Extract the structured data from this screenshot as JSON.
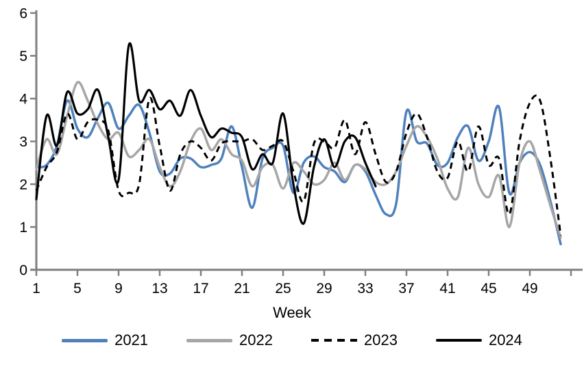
{
  "chart_data": {
    "type": "line",
    "title": "",
    "xlabel": "Week",
    "ylabel": "",
    "grid": false,
    "smoothed": true,
    "legend_position": "bottom",
    "axis_color": "#7f7f7f",
    "text_color": "#000000",
    "xlim": [
      1,
      53
    ],
    "ylim": [
      0,
      6
    ],
    "y_ticks": [
      0,
      1,
      2,
      3,
      4,
      5,
      6
    ],
    "x_ticks": [
      1,
      5,
      9,
      13,
      17,
      21,
      25,
      29,
      33,
      37,
      41,
      45,
      49,
      53
    ],
    "x_tick_labels": [
      "1",
      "5",
      "9",
      "13",
      "17",
      "21",
      "25",
      "29",
      "33",
      "37",
      "41",
      "45",
      "49",
      ""
    ],
    "weeks_start": 1,
    "series": [
      {
        "name": "2021",
        "color": "#4f81bd",
        "style": "solid",
        "values": [
          2.4,
          2.45,
          2.9,
          3.95,
          3.3,
          3.1,
          3.55,
          3.9,
          3.3,
          3.6,
          3.85,
          3.2,
          2.3,
          2.25,
          2.6,
          2.6,
          2.4,
          2.45,
          2.6,
          3.35,
          2.4,
          1.45,
          2.6,
          2.85,
          2.9,
          1.8,
          2.5,
          2.65,
          2.4,
          2.3,
          2.05,
          2.45,
          2.3,
          1.75,
          1.3,
          1.55,
          3.7,
          3.0,
          2.95,
          2.45,
          2.5,
          3.1,
          3.35,
          2.55,
          3.0,
          3.8,
          1.8,
          2.5,
          2.75,
          2.45,
          1.6,
          0.6
        ]
      },
      {
        "name": "2022",
        "color": "#a6a6a6",
        "style": "solid",
        "values": [
          2.35,
          3.05,
          2.7,
          3.6,
          4.38,
          3.95,
          3.4,
          3.05,
          3.2,
          2.65,
          2.8,
          3.05,
          2.4,
          1.95,
          2.3,
          3.0,
          3.3,
          2.8,
          3.05,
          2.7,
          2.55,
          1.95,
          2.4,
          2.45,
          1.9,
          2.5,
          2.3,
          2.0,
          2.1,
          2.5,
          2.1,
          2.45,
          2.35,
          2.05,
          2.0,
          2.3,
          2.9,
          3.35,
          3.1,
          2.6,
          1.9,
          1.7,
          2.85,
          2.0,
          1.7,
          2.2,
          1.0,
          2.5,
          3.0,
          2.3,
          1.5,
          0.75
        ]
      },
      {
        "name": "2023",
        "color": "#000000",
        "style": "dashed",
        "values": [
          1.85,
          2.4,
          2.75,
          3.65,
          3.05,
          3.45,
          3.5,
          3.25,
          1.85,
          1.8,
          2.0,
          4.0,
          2.9,
          1.85,
          2.7,
          3.0,
          2.85,
          2.55,
          2.95,
          3.0,
          3.0,
          3.05,
          2.8,
          2.9,
          3.0,
          2.3,
          1.6,
          2.95,
          3.0,
          2.85,
          3.5,
          2.7,
          3.45,
          2.7,
          2.05,
          2.3,
          3.2,
          3.65,
          3.1,
          2.3,
          2.15,
          3.0,
          2.3,
          3.35,
          2.45,
          2.6,
          1.3,
          3.0,
          3.9,
          3.95,
          2.6,
          0.8
        ]
      },
      {
        "name": "2024",
        "color": "#000000",
        "style": "solid",
        "values": [
          1.65,
          3.6,
          2.9,
          4.15,
          3.65,
          3.75,
          4.2,
          3.1,
          2.1,
          5.25,
          3.95,
          4.2,
          3.75,
          3.95,
          3.6,
          4.2,
          3.6,
          3.1,
          3.3,
          3.2,
          3.1,
          2.35,
          2.7,
          2.5,
          3.65,
          2.0,
          1.08,
          2.4,
          3.05,
          2.4,
          3.0,
          3.1,
          2.5,
          1.95
        ]
      }
    ]
  }
}
